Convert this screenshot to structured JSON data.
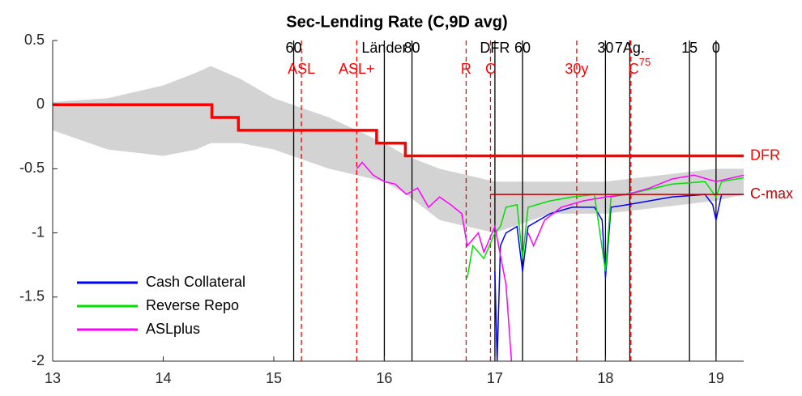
{
  "chart_data": {
    "type": "line",
    "title": "Sec-Lending Rate (C,9D avg)",
    "xlim": [
      13,
      19.25
    ],
    "xticks": [
      13,
      14,
      15,
      16,
      17,
      18,
      19
    ],
    "ylim": [
      -2,
      0.5
    ],
    "yticks": [
      0.5,
      0,
      -0.5,
      -1,
      -1.5,
      -2
    ],
    "band": {
      "color": "#c8c8c8",
      "x": [
        13,
        13.5,
        14,
        14.3,
        14.43,
        14.7,
        15,
        15.5,
        16,
        16.2,
        16.5,
        17,
        17.5,
        18,
        18.5,
        19,
        19.25
      ],
      "upper": [
        0.02,
        0.05,
        0.15,
        0.25,
        0.3,
        0.2,
        0.05,
        -0.1,
        -0.3,
        -0.4,
        -0.5,
        -0.6,
        -0.6,
        -0.6,
        -0.55,
        -0.5,
        -0.5
      ],
      "lower": [
        -0.2,
        -0.35,
        -0.4,
        -0.35,
        -0.3,
        -0.3,
        -0.35,
        -0.5,
        -0.6,
        -0.7,
        -0.9,
        -1.0,
        -0.85,
        -0.85,
        -0.8,
        -0.75,
        -0.7
      ]
    },
    "series": [
      {
        "name": "Cash Collateral",
        "color": "#0000ff",
        "legend": true,
        "x": [
          17.0,
          17.02,
          17.05,
          17.1,
          17.2,
          17.25,
          17.3,
          17.5,
          17.7,
          17.9,
          17.97,
          18.0,
          18.05,
          18.2,
          18.4,
          18.6,
          18.9,
          18.97,
          19.0,
          19.05,
          19.25
        ],
        "values": [
          -1.3,
          -2,
          -1.1,
          -1.0,
          -0.95,
          -1.3,
          -0.95,
          -0.85,
          -0.8,
          -0.8,
          -0.9,
          -1.35,
          -0.8,
          -0.78,
          -0.75,
          -0.72,
          -0.7,
          -0.78,
          -0.9,
          -0.7,
          -0.7
        ]
      },
      {
        "name": "Reverse Repo",
        "color": "#00e000",
        "legend": true,
        "x": [
          16.75,
          16.8,
          16.9,
          17.0,
          17.05,
          17.1,
          17.2,
          17.25,
          17.3,
          17.5,
          17.7,
          17.9,
          18.0,
          18.05,
          18.3,
          18.6,
          18.9,
          19.0,
          19.05,
          19.25
        ],
        "values": [
          -1.35,
          -1.1,
          -1.2,
          -1.0,
          -0.95,
          -0.8,
          -0.78,
          -1.2,
          -0.8,
          -0.75,
          -0.72,
          -0.7,
          -1.3,
          -0.72,
          -0.68,
          -0.62,
          -0.6,
          -0.72,
          -0.6,
          -0.57
        ]
      },
      {
        "name": "ASLplus",
        "color": "#ff00ff",
        "legend": true,
        "x": [
          15.75,
          15.8,
          15.9,
          16.0,
          16.1,
          16.2,
          16.3,
          16.4,
          16.5,
          16.6,
          16.7,
          16.75,
          16.85,
          16.9,
          17.0,
          17.1,
          17.15,
          17.2,
          17.3,
          17.35,
          17.45,
          17.6,
          17.8,
          18.0,
          18.2,
          18.4,
          18.6,
          18.8,
          19.0,
          19.25
        ],
        "values": [
          -0.5,
          -0.45,
          -0.55,
          -0.6,
          -0.62,
          -0.7,
          -0.65,
          -0.8,
          -0.72,
          -0.78,
          -0.85,
          -1.1,
          -1.0,
          -1.15,
          -0.95,
          -1.4,
          -2,
          null,
          -1.0,
          -1.1,
          -0.9,
          -0.8,
          -0.75,
          -0.72,
          -0.7,
          -0.65,
          -0.58,
          -0.55,
          -0.6,
          -0.55
        ]
      },
      {
        "name": "DFR",
        "color": "#ff0000",
        "width": 3.5,
        "x": [
          13,
          14.44,
          14.44,
          14.68,
          14.68,
          15.93,
          15.93,
          16.19,
          16.19,
          19.25
        ],
        "values": [
          0,
          0,
          -0.1,
          -0.1,
          -0.2,
          -0.2,
          -0.3,
          -0.3,
          -0.4,
          -0.4
        ]
      },
      {
        "name": "C-max",
        "color": "#c00000",
        "width": 1.5,
        "x": [
          16.96,
          19.25
        ],
        "values": [
          -0.7,
          -0.7
        ]
      }
    ],
    "events": [
      {
        "x": 15.18,
        "label": "60",
        "color": "#000000"
      },
      {
        "x": 16.0,
        "label": "Länder",
        "color": "#000000"
      },
      {
        "x": 16.25,
        "label": "80",
        "color": "#000000"
      },
      {
        "x": 17.0,
        "label": "DFR",
        "color": "#000000"
      },
      {
        "x": 17.25,
        "label": "60",
        "color": "#000000"
      },
      {
        "x": 18.0,
        "label": "30",
        "color": "#000000"
      },
      {
        "x": 18.22,
        "label": "7Ag.",
        "color": "#000000"
      },
      {
        "x": 18.76,
        "label": "15",
        "color": "#000000"
      },
      {
        "x": 19.0,
        "label": "0",
        "color": "#000000"
      },
      {
        "x": 15.25,
        "label": "ASL",
        "color": "#ff0000",
        "dashed": true
      },
      {
        "x": 15.75,
        "label": "ASL+",
        "color": "#ff0000",
        "dashed": true
      },
      {
        "x": 16.74,
        "label": "R",
        "color": "#ff0000",
        "dashed": true
      },
      {
        "x": 16.96,
        "label": "C",
        "color": "#ff0000",
        "dashed": true
      },
      {
        "x": 17.74,
        "label": "30y",
        "color": "#ff0000",
        "dashed": true
      },
      {
        "x": 18.23,
        "label": "C",
        "sup": "75",
        "color": "#ff0000",
        "dashed": true
      }
    ]
  }
}
